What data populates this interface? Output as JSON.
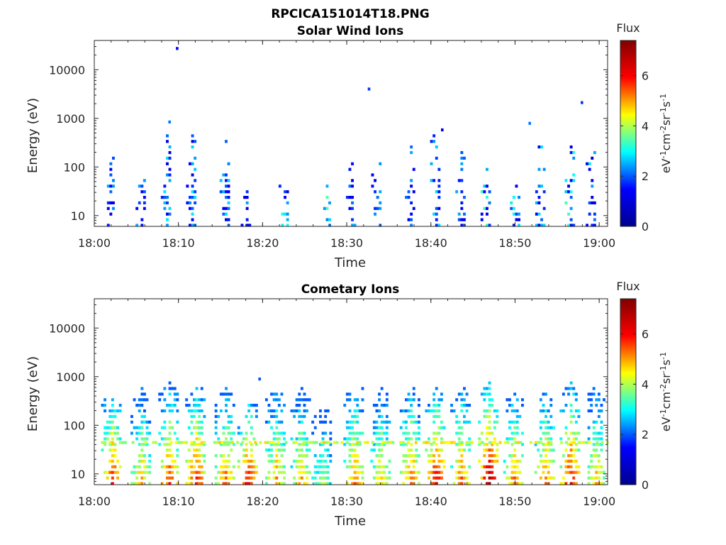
{
  "figure": {
    "filename": "RPCICA151014T18.PNG"
  },
  "colormap": {
    "name": "jet",
    "stops": [
      "#00008f",
      "#0000ff",
      "#00ffff",
      "#ffff00",
      "#ff0000",
      "#800000"
    ]
  },
  "chart_data": [
    {
      "type": "heatmap",
      "title": "Solar Wind Ions",
      "xlabel": "Time",
      "ylabel": "Energy (eV)",
      "xlim": [
        "18:00",
        "19:01"
      ],
      "xticks": [
        "18:00",
        "18:10",
        "18:20",
        "18:30",
        "18:40",
        "18:50",
        "19:00"
      ],
      "yscale": "log",
      "ylim": [
        6,
        40000
      ],
      "yticks": [
        10,
        100,
        1000,
        10000
      ],
      "ytick_labels": [
        "10",
        "100",
        "1000",
        "10000"
      ],
      "colorbar": {
        "label": "eV-1cm-2sr-1s-1",
        "title": "Flux",
        "range": [
          0,
          7.4
        ],
        "ticks": [
          "0",
          "2",
          "4",
          "6"
        ]
      },
      "bursts": [
        {
          "t": "18:01.8",
          "e_max": 200,
          "peak_flux": 2.5
        },
        {
          "t": "18:05.5",
          "e_max": 50,
          "peak_flux": 2.5
        },
        {
          "t": "18:08.5",
          "e_max": 400,
          "peak_flux": 3.0
        },
        {
          "t": "18:11.5",
          "e_max": 450,
          "peak_flux": 3.0
        },
        {
          "t": "18:15.5",
          "e_max": 300,
          "peak_flux": 2.8
        },
        {
          "t": "18:18.0",
          "e_max": 25,
          "peak_flux": 2.5
        },
        {
          "t": "18:22.5",
          "e_max": 60,
          "peak_flux": 3.5
        },
        {
          "t": "18:27.5",
          "e_max": 30,
          "peak_flux": 3.5
        },
        {
          "t": "18:30.5",
          "e_max": 120,
          "peak_flux": 2.5
        },
        {
          "t": "18:33.5",
          "e_max": 130,
          "peak_flux": 2.5
        },
        {
          "t": "18:37.5",
          "e_max": 200,
          "peak_flux": 2.5
        },
        {
          "t": "18:40.5",
          "e_max": 400,
          "peak_flux": 3.0
        },
        {
          "t": "18:43.5",
          "e_max": 150,
          "peak_flux": 2.5
        },
        {
          "t": "18:46.5",
          "e_max": 70,
          "peak_flux": 3.5
        },
        {
          "t": "18:50.0",
          "e_max": 35,
          "peak_flux": 3.0
        },
        {
          "t": "18:53.0",
          "e_max": 250,
          "peak_flux": 3.0
        },
        {
          "t": "18:56.5",
          "e_max": 200,
          "peak_flux": 3.5
        },
        {
          "t": "18:59.0",
          "e_max": 250,
          "peak_flux": 2.8
        }
      ],
      "outliers": [
        {
          "t": "18:09.7",
          "e": 26000,
          "flux": 1.5
        },
        {
          "t": "18:32.5",
          "e": 3800,
          "flux": 1.8
        },
        {
          "t": "18:41.2",
          "e": 550,
          "flux": 1.2
        },
        {
          "t": "18:51.6",
          "e": 750,
          "flux": 2.2
        },
        {
          "t": "18:57.8",
          "e": 2000,
          "flux": 1.8
        },
        {
          "t": "18:08.8",
          "e": 800,
          "flux": 2.2
        }
      ]
    },
    {
      "type": "heatmap",
      "title": "Cometary Ions",
      "xlabel": "Time",
      "ylabel": "Energy (eV)",
      "xlim": [
        "18:00",
        "19:01"
      ],
      "xticks": [
        "18:00",
        "18:10",
        "18:20",
        "18:30",
        "18:40",
        "18:50",
        "19:00"
      ],
      "yscale": "log",
      "ylim": [
        6,
        40000
      ],
      "yticks": [
        10,
        100,
        1000,
        10000
      ],
      "ytick_labels": [
        "10",
        "100",
        "1000",
        "10000"
      ],
      "colorbar": {
        "label": "eV-1cm-2sr-1s-1",
        "title": "Flux",
        "range": [
          0,
          7.4
        ],
        "ticks": [
          "0",
          "2",
          "4",
          "6"
        ]
      },
      "bursts": [
        {
          "t": "18:02.0",
          "e_max": 400,
          "peak_flux": 6.0
        },
        {
          "t": "18:05.5",
          "e_max": 450,
          "peak_flux": 5.0
        },
        {
          "t": "18:08.8",
          "e_max": 550,
          "peak_flux": 5.8
        },
        {
          "t": "18:12.0",
          "e_max": 550,
          "peak_flux": 6.0
        },
        {
          "t": "18:15.5",
          "e_max": 450,
          "peak_flux": 5.5
        },
        {
          "t": "18:18.2",
          "e_max": 300,
          "peak_flux": 6.2
        },
        {
          "t": "18:21.5",
          "e_max": 450,
          "peak_flux": 5.2
        },
        {
          "t": "18:24.5",
          "e_max": 450,
          "peak_flux": 5.0
        },
        {
          "t": "18:27.0",
          "e_max": 200,
          "peak_flux": 4.0
        },
        {
          "t": "18:30.8",
          "e_max": 600,
          "peak_flux": 5.5
        },
        {
          "t": "18:34.0",
          "e_max": 450,
          "peak_flux": 5.0
        },
        {
          "t": "18:37.5",
          "e_max": 500,
          "peak_flux": 5.5
        },
        {
          "t": "18:40.5",
          "e_max": 450,
          "peak_flux": 6.3
        },
        {
          "t": "18:43.5",
          "e_max": 500,
          "peak_flux": 5.5
        },
        {
          "t": "18:46.8",
          "e_max": 550,
          "peak_flux": 6.8
        },
        {
          "t": "18:49.8",
          "e_max": 450,
          "peak_flux": 5.5
        },
        {
          "t": "18:53.5",
          "e_max": 400,
          "peak_flux": 5.5
        },
        {
          "t": "18:56.5",
          "e_max": 550,
          "peak_flux": 6.2
        },
        {
          "t": "18:59.5",
          "e_max": 500,
          "peak_flux": 5.0
        }
      ],
      "outliers": [
        {
          "t": "18:19.5",
          "e": 850,
          "flux": 2.0
        }
      ]
    }
  ]
}
